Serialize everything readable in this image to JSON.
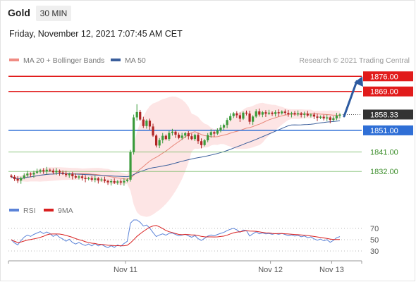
{
  "header": {
    "instrument": "Gold",
    "timeframe": "30 MIN",
    "datetime": "Friday, November 12, 2021 7:07:45 AM CET"
  },
  "legend": {
    "bollinger_label": "MA 20 + Bollinger Bands",
    "ma50_label": "MA 50",
    "credit": "Research © 2021 Trading Central",
    "rsi_label": "RSI",
    "rsi_ma_label": "9MA"
  },
  "colors": {
    "up_candle": "#3b9b3b",
    "down_candle": "#b02525",
    "resistance": "#e11b1b",
    "pivot": "#2f6fd6",
    "support": "#75ba64",
    "ma20": "#e8877a",
    "bollinger_fill": "#fde1e1",
    "ma50": "#3b5f9c",
    "rsi": "#5b83d8",
    "rsi_ma": "#d92020",
    "last_price_bg": "#333333",
    "arrow": "#2c5aa0"
  },
  "chart_data": [
    {
      "type": "candlestick",
      "timeframe": "30 MIN",
      "x_labels": [
        "Nov 11",
        "Nov 12",
        "Nov 13"
      ],
      "ylim": [
        1820,
        1880
      ],
      "last_price": 1858.33,
      "levels": [
        {
          "value": 1876.0,
          "label": "1876.00",
          "kind": "resistance"
        },
        {
          "value": 1869.0,
          "label": "1869.00",
          "kind": "resistance"
        },
        {
          "value": 1851.0,
          "label": "1851.00",
          "kind": "pivot"
        },
        {
          "value": 1841.0,
          "label": "1841.00",
          "kind": "support"
        },
        {
          "value": 1832.0,
          "label": "1832.00",
          "kind": "support"
        }
      ],
      "forecast_arrow": {
        "from": 1857.5,
        "to": 1876.0,
        "direction": "up"
      },
      "close": [
        1829.5,
        1828.5,
        1827.8,
        1829.0,
        1830.2,
        1831.0,
        1830.6,
        1831.4,
        1832.0,
        1832.6,
        1832.1,
        1832.8,
        1832.4,
        1831.6,
        1832.3,
        1831.5,
        1831.0,
        1830.3,
        1830.9,
        1829.8,
        1829.2,
        1829.7,
        1829.0,
        1828.5,
        1828.9,
        1828.2,
        1828.8,
        1827.9,
        1828.3,
        1827.6,
        1827.0,
        1827.5,
        1826.8,
        1827.4,
        1826.9,
        1827.6,
        1828.2,
        1841.0,
        1857.0,
        1859.5,
        1856.0,
        1853.0,
        1855.5,
        1852.8,
        1848.6,
        1844.0,
        1846.5,
        1848.5,
        1847.0,
        1849.8,
        1850.4,
        1849.0,
        1847.5,
        1848.6,
        1849.7,
        1848.3,
        1847.0,
        1848.9,
        1846.0,
        1844.2,
        1846.4,
        1848.8,
        1850.2,
        1849.5,
        1851.0,
        1852.3,
        1853.5,
        1855.8,
        1857.6,
        1858.9,
        1858.0,
        1856.4,
        1859.2,
        1858.8,
        1855.0,
        1857.4,
        1859.8,
        1858.3,
        1859.4,
        1858.7,
        1859.2,
        1858.6,
        1859.4,
        1858.9,
        1859.7,
        1859.1,
        1858.5,
        1859.0,
        1858.4,
        1858.9,
        1858.2,
        1858.7,
        1857.9,
        1858.3,
        1857.4,
        1856.8,
        1857.3,
        1856.5,
        1857.0,
        1855.8,
        1856.6,
        1857.8,
        1858.33
      ],
      "rsi": {
        "ylim": [
          0,
          100
        ],
        "levels": [
          70,
          50,
          30
        ],
        "last": 47
      }
    }
  ]
}
